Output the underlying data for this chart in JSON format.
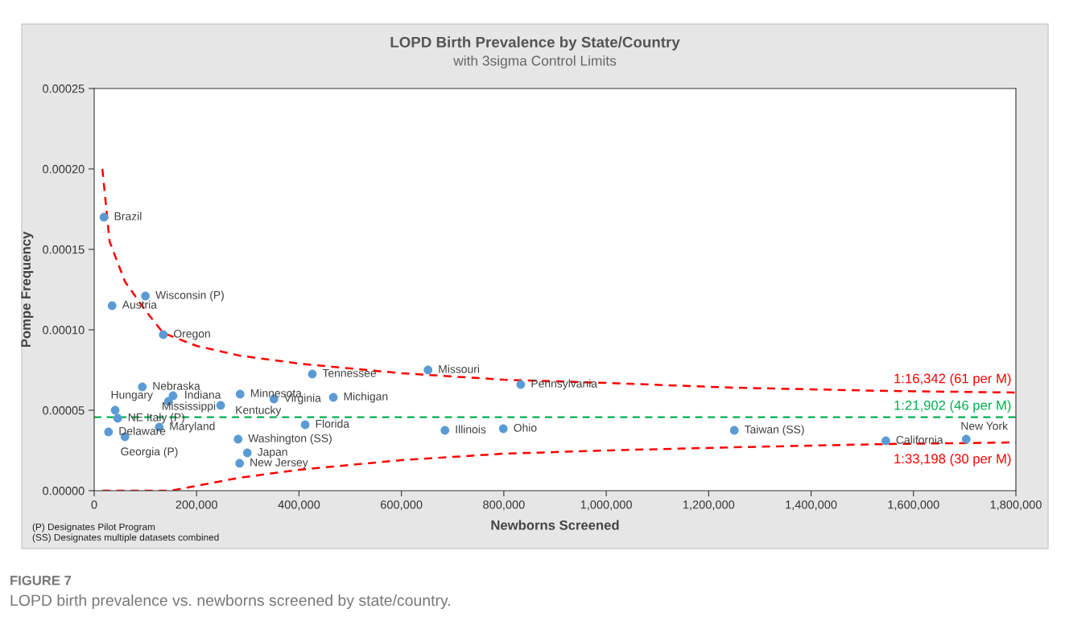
{
  "chart_data": {
    "type": "scatter",
    "title": "LOPD Birth Prevalence by State/Country",
    "subtitle": "with 3sigma Control Limits",
    "xlabel": "Newborns Screened",
    "ylabel": "Pompe Frequency",
    "xlim": [
      0,
      1800000
    ],
    "xticks": [
      {
        "value": 0,
        "label": "0"
      },
      {
        "value": 200000,
        "label": "200,000"
      },
      {
        "value": 400000,
        "label": "400,000"
      },
      {
        "value": 600000,
        "label": "600,000"
      },
      {
        "value": 800000,
        "label": "800,000"
      },
      {
        "value": 1000000,
        "label": "1,000,000"
      },
      {
        "value": 1200000,
        "label": "1,200,000"
      },
      {
        "value": 1400000,
        "label": "1,400,000"
      },
      {
        "value": 1600000,
        "label": "1,600,000"
      },
      {
        "value": 1800000,
        "label": "1,800,000"
      }
    ],
    "ylim": [
      0,
      0.00025
    ],
    "yticks": [
      {
        "value": 0,
        "label": "0.00000"
      },
      {
        "value": 5e-05,
        "label": "0.00005"
      },
      {
        "value": 0.0001,
        "label": "0.00010"
      },
      {
        "value": 0.00015,
        "label": "0.00015"
      },
      {
        "value": 0.0002,
        "label": "0.00020"
      },
      {
        "value": 0.00025,
        "label": "0.00025"
      }
    ],
    "marker": "circle",
    "series": [
      {
        "color": "#5b9bd5",
        "x": [
          19000,
          35000,
          100000,
          135000,
          94000,
          154000,
          145000,
          41000,
          46000,
          28000,
          60000,
          127000,
          247000,
          285000,
          351000,
          467000,
          426000,
          652000,
          833000,
          412000,
          281000,
          299000,
          284000,
          685000,
          799000,
          1250000,
          1546000,
          1703000
        ],
        "values": [
          0.00017,
          0.000115,
          0.000121,
          9.7e-05,
          6.45e-05,
          5.9e-05,
          5.55e-05,
          5e-05,
          4.5e-05,
          3.65e-05,
          3.35e-05,
          3.95e-05,
          5.3e-05,
          6e-05,
          5.7e-05,
          5.8e-05,
          7.25e-05,
          7.5e-05,
          6.6e-05,
          4.1e-05,
          3.2e-05,
          2.35e-05,
          1.7e-05,
          3.75e-05,
          3.85e-05,
          3.75e-05,
          3.1e-05,
          3.2e-05
        ]
      },
      {
        "type": "line",
        "color": "#ff0000",
        "line_style": "dashed",
        "marker": "none",
        "x": [
          16000,
          30000,
          60000,
          100000,
          135000,
          200000,
          283000,
          400000,
          600000,
          800000,
          1000000,
          1250000,
          1550000,
          1800000
        ],
        "values": [
          0.0002,
          0.000155,
          0.00013,
          0.000112,
          9.8e-05,
          9e-05,
          8.4e-05,
          7.9e-05,
          7.3e-05,
          6.9e-05,
          6.7e-05,
          6.4e-05,
          6.2e-05,
          6.1e-05
        ]
      },
      {
        "type": "line",
        "color": "#ff0000",
        "line_style": "dashed",
        "marker": "none",
        "x": [
          16000,
          150000,
          200000,
          283000,
          400000,
          600000,
          800000,
          1000000,
          1250000,
          1550000,
          1800000
        ],
        "values": [
          0,
          0,
          3e-06,
          8e-06,
          1.3e-05,
          1.9e-05,
          2.3e-05,
          2.5e-05,
          2.7e-05,
          2.9e-05,
          3e-05
        ]
      }
    ],
    "ref_lines": [
      {
        "axis": "y",
        "value": 4.57e-05,
        "label": "1:21,902 (46 per M)",
        "color": "#00b050",
        "line_style": "dashed"
      }
    ],
    "annotations": [
      {
        "text": "Brazil",
        "x": 19000,
        "y": 0.00017
      },
      {
        "text": "Austria",
        "x": 35000,
        "y": 0.000115
      },
      {
        "text": "Wisconsin (P)",
        "x": 100000,
        "y": 0.000121
      },
      {
        "text": "Oregon",
        "x": 135000,
        "y": 9.7e-05
      },
      {
        "text": "Nebraska",
        "x": 94000,
        "y": 6.45e-05
      },
      {
        "text": "Indiana",
        "x": 154000,
        "y": 5.9e-05
      },
      {
        "text": "Mississippi",
        "x": 145000,
        "y": 5.55e-05
      },
      {
        "text": "Hungary",
        "x": 41000,
        "y": 5e-05
      },
      {
        "text": "NE Italy (P)",
        "x": 46000,
        "y": 4.5e-05
      },
      {
        "text": "Delaware",
        "x": 28000,
        "y": 3.65e-05
      },
      {
        "text": "Georgia (P)",
        "x": 60000,
        "y": 3.35e-05
      },
      {
        "text": "Maryland",
        "x": 127000,
        "y": 3.95e-05
      },
      {
        "text": "Kentucky",
        "x": 247000,
        "y": 5.3e-05
      },
      {
        "text": "Minnesota",
        "x": 285000,
        "y": 6e-05
      },
      {
        "text": "Virginia",
        "x": 351000,
        "y": 5.7e-05
      },
      {
        "text": "Michigan",
        "x": 467000,
        "y": 5.8e-05
      },
      {
        "text": "Tennessee",
        "x": 426000,
        "y": 7.25e-05
      },
      {
        "text": "Missouri",
        "x": 652000,
        "y": 7.5e-05
      },
      {
        "text": "Pennsylvania",
        "x": 833000,
        "y": 6.6e-05
      },
      {
        "text": "Florida",
        "x": 412000,
        "y": 4.1e-05
      },
      {
        "text": "Washington (SS)",
        "x": 281000,
        "y": 3.2e-05
      },
      {
        "text": "Japan",
        "x": 299000,
        "y": 2.35e-05
      },
      {
        "text": "New Jersey",
        "x": 284000,
        "y": 1.7e-05
      },
      {
        "text": "Illinois",
        "x": 685000,
        "y": 3.75e-05
      },
      {
        "text": "Ohio",
        "x": 799000,
        "y": 3.85e-05
      },
      {
        "text": "Taiwan (SS)",
        "x": 1250000,
        "y": 3.75e-05
      },
      {
        "text": "California",
        "x": 1546000,
        "y": 3.1e-05
      },
      {
        "text": "New York",
        "x": 1703000,
        "y": 3.2e-05
      },
      {
        "text": "1:16,342 (61 per M)",
        "x": 1800000,
        "y": 6.1e-05
      },
      {
        "text": "1:33,198 (30 per M)",
        "x": 1800000,
        "y": 3e-05
      },
      "(P) Designates Pilot Program",
      "(SS) Designates multiple datasets combined",
      "FIGURE 7",
      "LOPD birth prevalence vs. newborns screened by state/country."
    ]
  }
}
